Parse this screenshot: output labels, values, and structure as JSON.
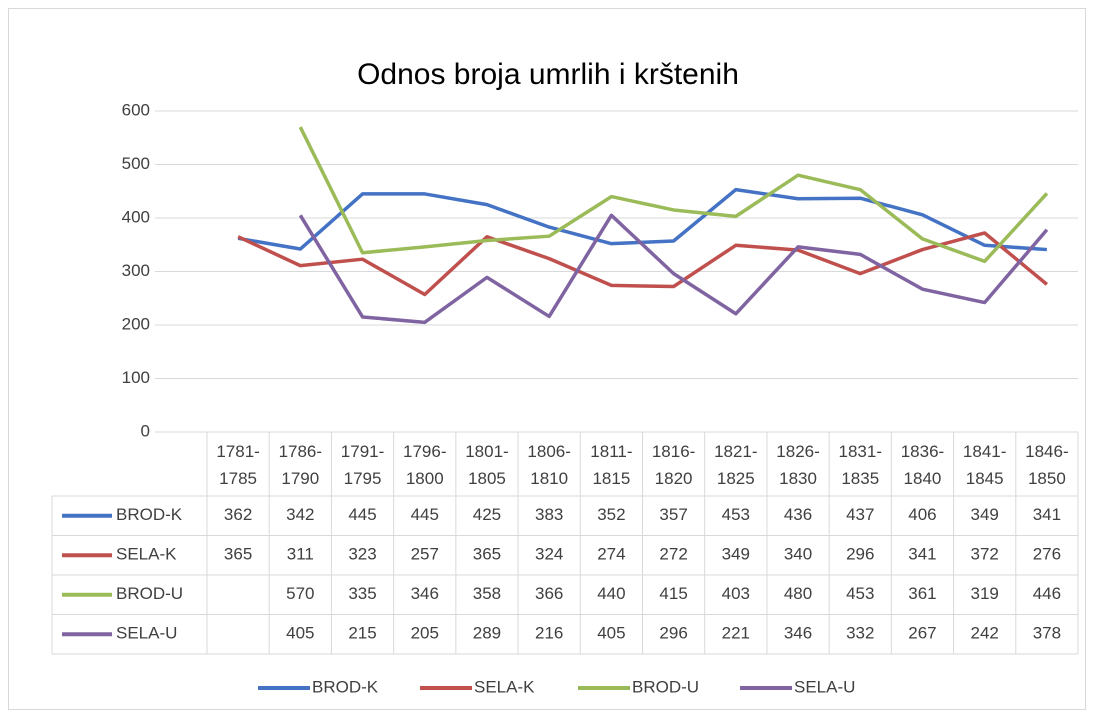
{
  "chart_data": {
    "type": "line",
    "title": "Odnos broja umrlih i krštenih",
    "categories": [
      "1781-1785",
      "1786-1790",
      "1791-1795",
      "1796-1800",
      "1801-1805",
      "1806-1810",
      "1811-1815",
      "1816-1820",
      "1821-1825",
      "1826-1830",
      "1831-1835",
      "1836-1840",
      "1841-1845",
      "1846-1850"
    ],
    "series": [
      {
        "name": "BROD-K",
        "color": "#4472c4",
        "values": [
          362,
          342,
          445,
          445,
          425,
          383,
          352,
          357,
          453,
          436,
          437,
          406,
          349,
          341
        ]
      },
      {
        "name": "SELA-K",
        "color": "#c0504d",
        "values": [
          365,
          311,
          323,
          257,
          365,
          324,
          274,
          272,
          349,
          340,
          296,
          341,
          372,
          276
        ]
      },
      {
        "name": "BROD-U",
        "color": "#9bbb59",
        "values": [
          null,
          570,
          335,
          346,
          358,
          366,
          440,
          415,
          403,
          480,
          453,
          361,
          319,
          446
        ]
      },
      {
        "name": "SELA-U",
        "color": "#8064a2",
        "values": [
          null,
          405,
          215,
          205,
          289,
          216,
          405,
          296,
          221,
          346,
          332,
          267,
          242,
          378
        ]
      }
    ],
    "ylim": [
      0,
      600
    ],
    "yticks": [
      0,
      100,
      200,
      300,
      400,
      500,
      600
    ],
    "grid": true,
    "legend": "bottom"
  }
}
